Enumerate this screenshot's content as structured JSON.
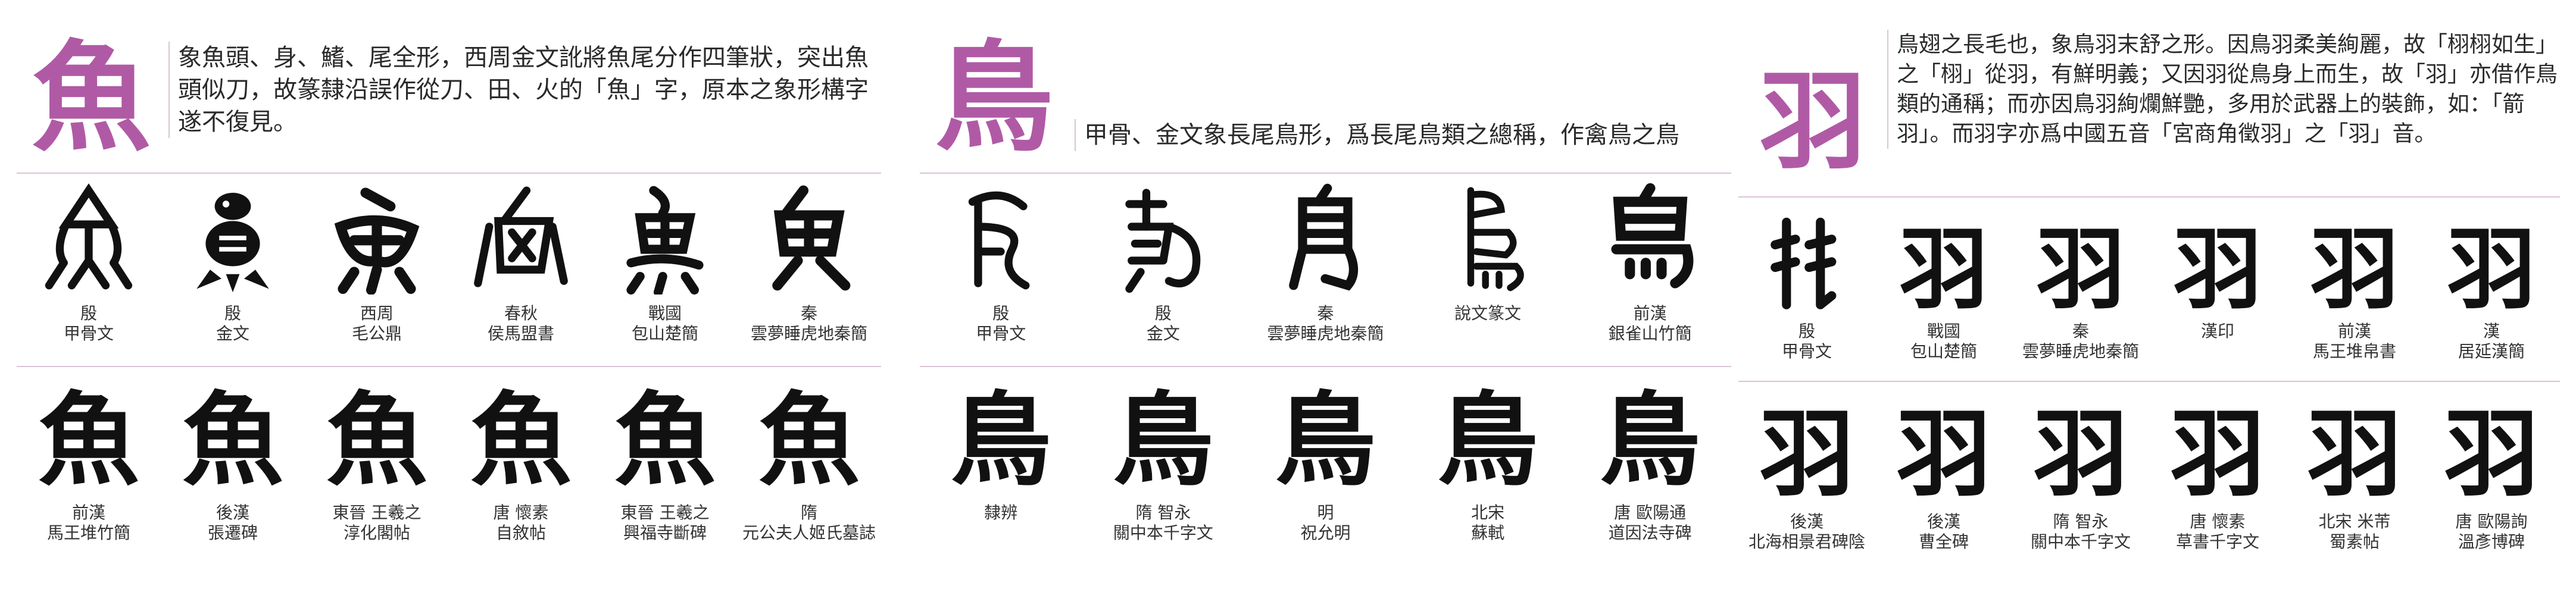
{
  "panels": [
    {
      "char": "魚",
      "desc": "象魚頭、身、鰭、尾全形，西周金文訛將魚尾分作四筆狀，突出魚頭似刀，故篆隸沿誤作從刀、田、火的「魚」字，原本之象形構字遂不復見。",
      "row1": [
        {
          "era": "殷",
          "src": "甲骨文"
        },
        {
          "era": "殷",
          "src": "金文"
        },
        {
          "era": "西周",
          "src": "毛公鼎"
        },
        {
          "era": "春秋",
          "src": "侯馬盟書"
        },
        {
          "era": "戰國",
          "src": "包山楚簡"
        },
        {
          "era": "秦",
          "src": "雲夢睡虎地秦簡"
        }
      ],
      "row2": [
        {
          "era": "前漢",
          "src": "馬王堆竹簡"
        },
        {
          "era": "後漢",
          "src": "張遷碑"
        },
        {
          "era": "東晉 王羲之",
          "src": "淳化閣帖"
        },
        {
          "era": "唐 懷素",
          "src": "自敘帖"
        },
        {
          "era": "東晉 王羲之",
          "src": "興福寺斷碑"
        },
        {
          "era": "隋",
          "src": "元公夫人姬氏墓誌"
        }
      ],
      "row2_chars": [
        "魚",
        "魚",
        "魚",
        "魚",
        "魚",
        "魚"
      ]
    },
    {
      "char": "鳥",
      "desc": "甲骨、金文象長尾鳥形，爲長尾鳥類之總稱，作禽鳥之鳥",
      "row1": [
        {
          "era": "殷",
          "src": "甲骨文"
        },
        {
          "era": "殷",
          "src": "金文"
        },
        {
          "era": "秦",
          "src": "雲夢睡虎地秦簡"
        },
        {
          "era": "",
          "src": "說文篆文"
        },
        {
          "era": "前漢",
          "src": "銀雀山竹簡"
        }
      ],
      "row2": [
        {
          "era": "",
          "src": "隸辨"
        },
        {
          "era": "隋 智永",
          "src": "關中本千字文"
        },
        {
          "era": "明",
          "src": "祝允明"
        },
        {
          "era": "北宋",
          "src": "蘇軾"
        },
        {
          "era": "唐 歐陽通",
          "src": "道因法寺碑"
        }
      ],
      "row2_chars": [
        "鳥",
        "鳥",
        "鳥",
        "鳥",
        "鳥"
      ]
    },
    {
      "char": "羽",
      "desc": "鳥翅之長毛也，象鳥羽末舒之形。因鳥羽柔美絢麗，故「栩栩如生」之「栩」從羽，有鮮明義；又因羽從鳥身上而生，故「羽」亦借作鳥類的通稱；而亦因鳥羽絢爛鮮艷，多用於武器上的裝飾，如：「箭羽」。而羽字亦爲中國五音「宮商角徵羽」之「羽」音。",
      "row1": [
        {
          "era": "殷",
          "src": "甲骨文"
        },
        {
          "era": "戰國",
          "src": "包山楚簡"
        },
        {
          "era": "秦",
          "src": "雲夢睡虎地秦簡"
        },
        {
          "era": "",
          "src": "漢印"
        },
        {
          "era": "前漢",
          "src": "馬王堆帛書"
        },
        {
          "era": "漢",
          "src": "居延漢簡"
        }
      ],
      "row2": [
        {
          "era": "後漢",
          "src": "北海相景君碑陰"
        },
        {
          "era": "後漢",
          "src": "曹全碑"
        },
        {
          "era": "隋 智永",
          "src": "關中本千字文"
        },
        {
          "era": "唐 懷素",
          "src": "草書千字文"
        },
        {
          "era": "北宋 米芾",
          "src": "蜀素帖"
        },
        {
          "era": "唐 歐陽詢",
          "src": "溫彥博碑"
        }
      ],
      "row1_chars": [
        "羽",
        "羽",
        "羽",
        "羽",
        "羽",
        "羽"
      ],
      "row2_chars": [
        "羽",
        "羽",
        "羽",
        "羽",
        "羽",
        "羽"
      ]
    }
  ],
  "colors": {
    "accent": "#b05aa6",
    "rule": "#d9c4d7"
  }
}
